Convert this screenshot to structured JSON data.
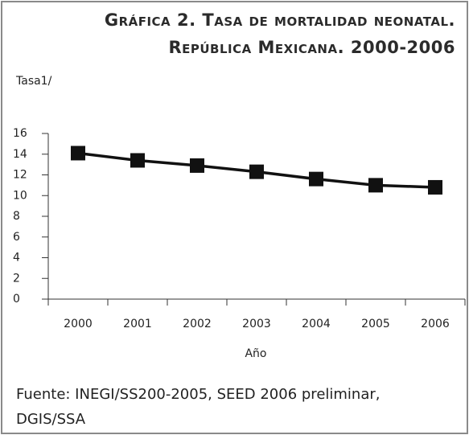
{
  "chart_data": {
    "type": "line",
    "title": [
      "Gráfica 2. Tasa de mortalidad neonatal.",
      "República Mexicana. 2000-2006"
    ],
    "y_label": "Tasa1/",
    "x_label": "Año",
    "source": "Fuente: INEGI/SS200-2005, SEED 2006 preliminar, DGIS/SSA",
    "categories": [
      "2000",
      "2001",
      "2002",
      "2003",
      "2004",
      "2005",
      "2006"
    ],
    "series": [
      {
        "name": "Tasa",
        "color": "#111111",
        "values": [
          14.1,
          13.4,
          12.9,
          12.3,
          11.6,
          11.0,
          10.8
        ]
      }
    ],
    "ylim": [
      0,
      16
    ],
    "yticks": [
      0,
      2,
      4,
      6,
      8,
      10,
      12,
      14,
      16
    ]
  }
}
